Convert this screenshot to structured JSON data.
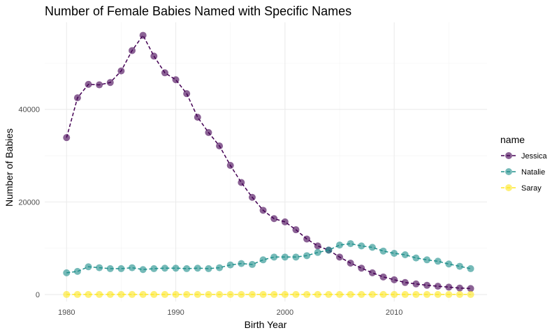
{
  "chart_data": {
    "type": "line",
    "title": "Number of Female Babies Named with Specific Names",
    "xlabel": "Birth Year",
    "ylabel": "Number of Babies",
    "xlim": [
      1978,
      2018.5
    ],
    "ylim": [
      -1500,
      58800
    ],
    "x_ticks": [
      1980,
      1990,
      2000,
      2010
    ],
    "y_ticks": [
      0,
      20000,
      40000
    ],
    "y_tick_labels": [
      "0",
      "20000",
      "40000"
    ],
    "grid": true,
    "legend": {
      "title": "name",
      "position": "right"
    },
    "x": [
      1980,
      1981,
      1982,
      1983,
      1984,
      1985,
      1986,
      1987,
      1988,
      1989,
      1990,
      1991,
      1992,
      1993,
      1994,
      1995,
      1996,
      1997,
      1998,
      1999,
      2000,
      2001,
      2002,
      2003,
      2004,
      2005,
      2006,
      2007,
      2008,
      2009,
      2010,
      2011,
      2012,
      2013,
      2014,
      2015,
      2016,
      2017
    ],
    "series": [
      {
        "name": "Jessica",
        "color": "#440154",
        "values": [
          33900,
          42500,
          45400,
          45300,
          45800,
          48300,
          52700,
          56000,
          51500,
          47900,
          46400,
          43400,
          38300,
          35000,
          32100,
          27900,
          24200,
          21000,
          18200,
          16400,
          15700,
          14000,
          12000,
          10500,
          9600,
          8100,
          6800,
          5700,
          4700,
          3800,
          3200,
          2600,
          2300,
          2000,
          1800,
          1600,
          1400,
          1300
        ]
      },
      {
        "name": "Natalie",
        "color": "#21908C",
        "values": [
          4700,
          5000,
          6000,
          5800,
          5600,
          5600,
          5800,
          5400,
          5600,
          5700,
          5700,
          5600,
          5700,
          5600,
          5800,
          6400,
          6700,
          6500,
          7500,
          8100,
          8100,
          8100,
          8400,
          9100,
          9600,
          10700,
          11000,
          10500,
          10200,
          9400,
          8900,
          8600,
          7900,
          7500,
          7200,
          6600,
          6100,
          5600
        ]
      },
      {
        "name": "Saray",
        "color": "#FDE725",
        "values": [
          20,
          20,
          20,
          20,
          20,
          20,
          20,
          20,
          20,
          20,
          20,
          20,
          20,
          20,
          20,
          20,
          20,
          20,
          20,
          20,
          20,
          20,
          20,
          20,
          20,
          20,
          20,
          20,
          20,
          20,
          20,
          20,
          20,
          20,
          20,
          20,
          20,
          20
        ]
      }
    ]
  }
}
